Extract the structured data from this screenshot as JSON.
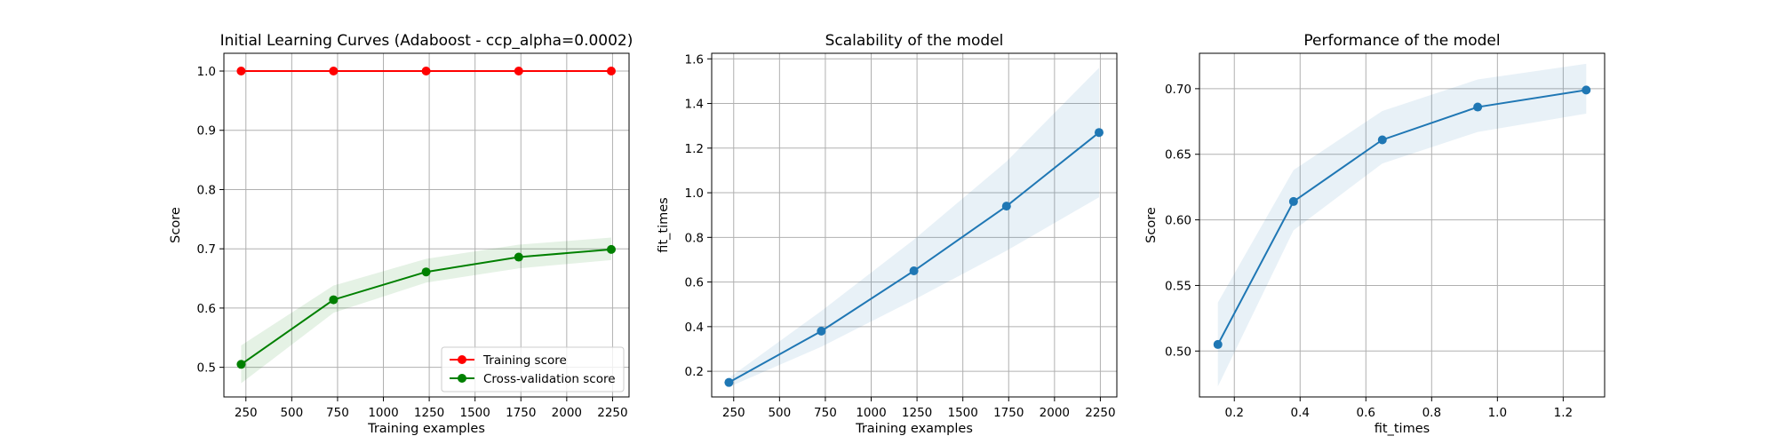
{
  "colors": {
    "training": "#ff0000",
    "cv": "#008000",
    "blue": "#1f77b4",
    "grid": "#b0b0b0"
  },
  "chart_data": [
    {
      "type": "line",
      "title": "Initial Learning Curves (Adaboost - ccp_alpha=0.0002)",
      "xlabel": "Training examples",
      "ylabel": "Score",
      "x": [
        224,
        728,
        1233,
        1738,
        2243
      ],
      "xlim": [
        130,
        2340
      ],
      "ylim": [
        0.45,
        1.03
      ],
      "xticks": [
        250,
        500,
        750,
        1000,
        1250,
        1500,
        1750,
        2000,
        2250
      ],
      "yticks": [
        0.5,
        0.6,
        0.7,
        0.8,
        0.9,
        1.0
      ],
      "grid": true,
      "legend": "lower right",
      "series": [
        {
          "name": "Training score",
          "values": [
            1.0,
            1.0,
            1.0,
            1.0,
            1.0
          ],
          "band_low": [
            1.0,
            1.0,
            1.0,
            1.0,
            1.0
          ],
          "band_high": [
            1.0,
            1.0,
            1.0,
            1.0,
            1.0
          ],
          "color": "#ff0000"
        },
        {
          "name": "Cross-validation score",
          "values": [
            0.505,
            0.614,
            0.661,
            0.686,
            0.699
          ],
          "band_low": [
            0.473,
            0.592,
            0.643,
            0.667,
            0.681
          ],
          "band_high": [
            0.537,
            0.638,
            0.683,
            0.707,
            0.719
          ],
          "color": "#008000"
        }
      ]
    },
    {
      "type": "line",
      "title": "Scalability of the model",
      "xlabel": "Training examples",
      "ylabel": "fit_times",
      "x": [
        224,
        728,
        1233,
        1738,
        2243
      ],
      "xlim": [
        130,
        2340
      ],
      "ylim": [
        0.085,
        1.625
      ],
      "xticks": [
        250,
        500,
        750,
        1000,
        1250,
        1500,
        1750,
        2000,
        2250
      ],
      "yticks": [
        0.2,
        0.4,
        0.6,
        0.8,
        1.0,
        1.2,
        1.4,
        1.6
      ],
      "grid": true,
      "series": [
        {
          "values": [
            0.15,
            0.38,
            0.65,
            0.94,
            1.27
          ],
          "band_low": [
            0.13,
            0.31,
            0.52,
            0.74,
            0.98
          ],
          "band_high": [
            0.17,
            0.47,
            0.79,
            1.14,
            1.56
          ],
          "color": "#1f77b4"
        }
      ]
    },
    {
      "type": "line",
      "title": "Performance of the model",
      "xlabel": "fit_times",
      "ylabel": "Score",
      "x": [
        0.15,
        0.38,
        0.65,
        0.94,
        1.27
      ],
      "xlim": [
        0.094,
        1.326
      ],
      "ylim": [
        0.465,
        0.727
      ],
      "xticks": [
        0.2,
        0.4,
        0.6,
        0.8,
        1.0,
        1.2
      ],
      "yticks": [
        0.5,
        0.55,
        0.6,
        0.65,
        0.7
      ],
      "grid": true,
      "series": [
        {
          "values": [
            0.505,
            0.614,
            0.661,
            0.686,
            0.699
          ],
          "band_low": [
            0.473,
            0.592,
            0.643,
            0.667,
            0.681
          ],
          "band_high": [
            0.537,
            0.638,
            0.683,
            0.707,
            0.719
          ],
          "color": "#1f77b4"
        }
      ]
    }
  ]
}
